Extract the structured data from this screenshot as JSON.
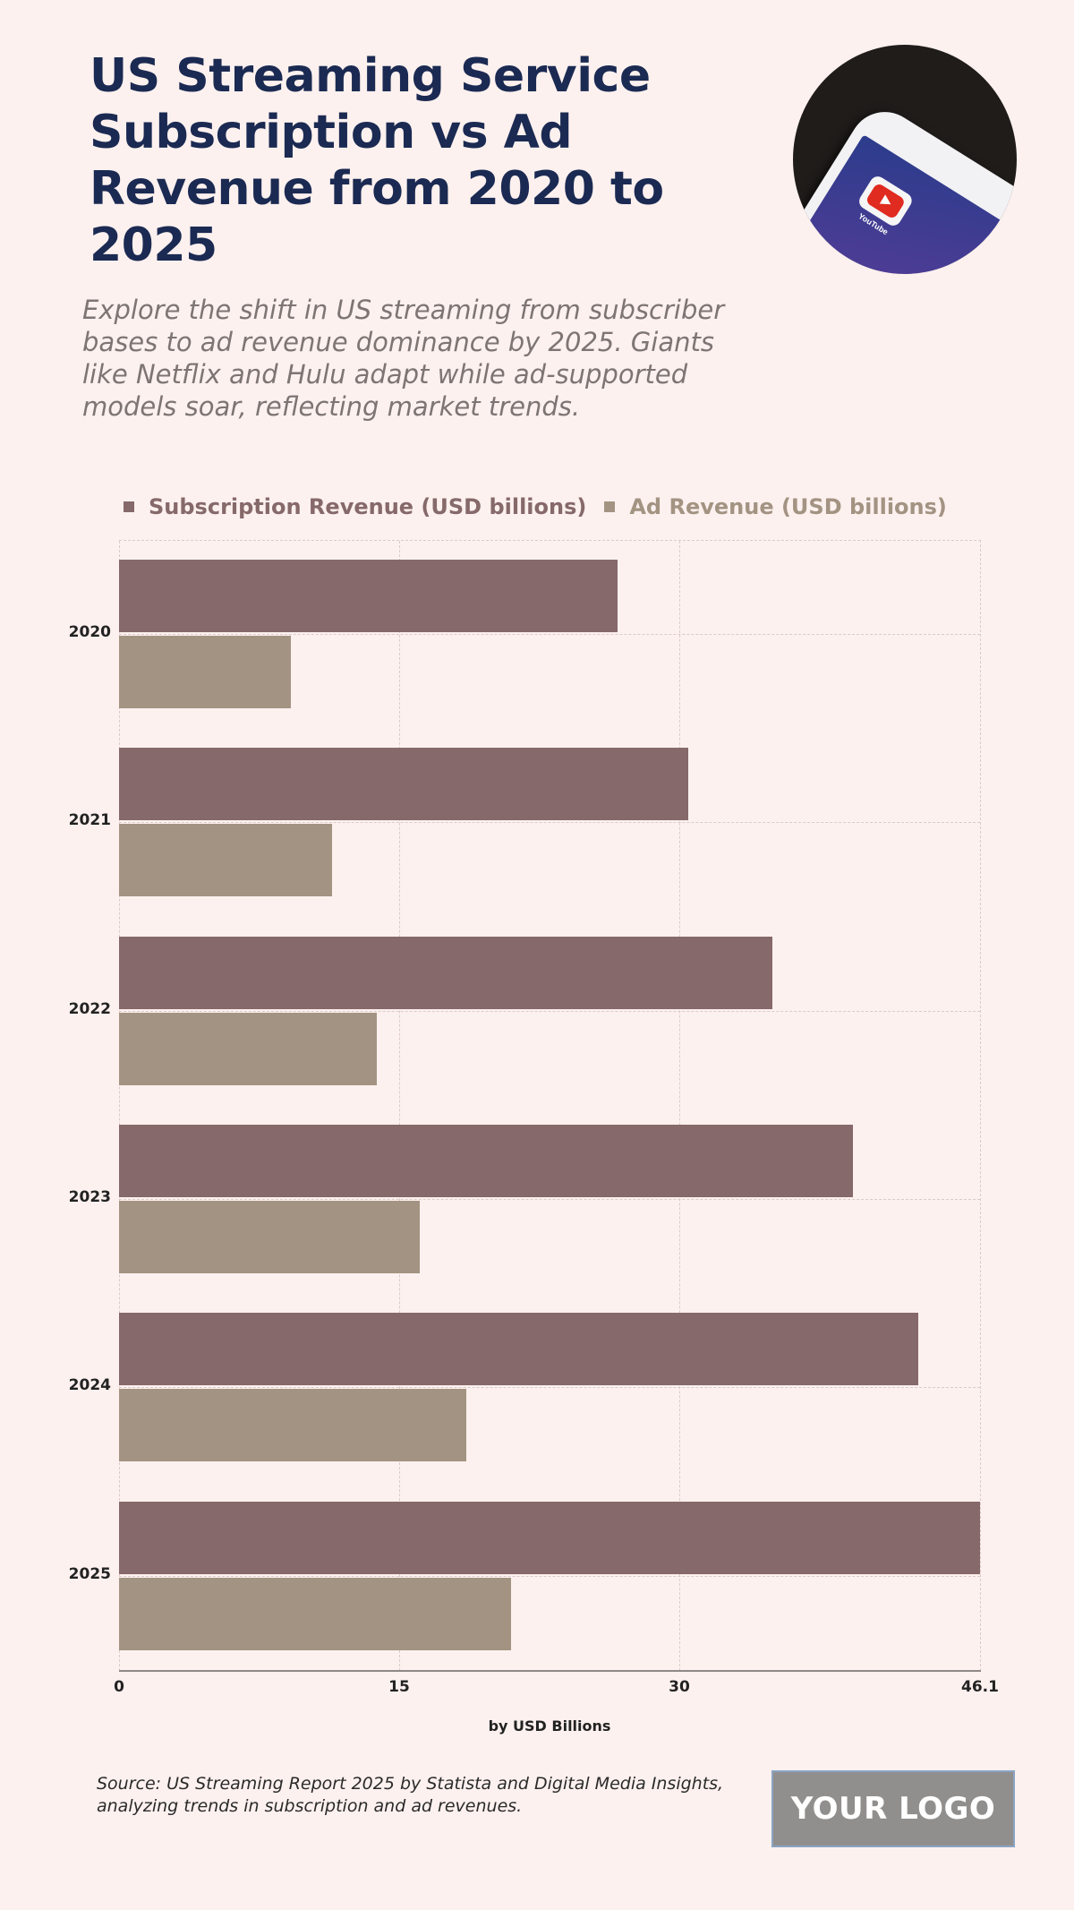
{
  "header": {
    "title": "US Streaming Service Subscription vs Ad Revenue from 2020 to 2025",
    "subtitle": "Explore the shift in US streaming from subscriber bases to ad revenue dominance by 2025. Giants like Netflix and Hulu adapt while ad-supported models soar, reflecting market trends.",
    "hero_image": {
      "app_label": "YouTube",
      "icon": "youtube-app-icon"
    }
  },
  "legend": {
    "items": [
      {
        "label": "Subscription Revenue (USD billions)",
        "color": "#86696a"
      },
      {
        "label": "Ad Revenue (USD billions)",
        "color": "#a39382"
      }
    ]
  },
  "axis": {
    "x_ticks": [
      "0",
      "15",
      "30",
      "46.1"
    ],
    "x_title": "by USD Billions"
  },
  "footer": {
    "source": "Source: US Streaming Report 2025 by Statista and Digital Media Insights, analyzing trends in subscription and ad revenues.",
    "logo_text": "YOUR LOGO"
  },
  "chart_data": {
    "type": "bar",
    "orientation": "horizontal",
    "title": "US Streaming Service Subscription vs Ad Revenue from 2020 to 2025",
    "categories": [
      "2020",
      "2021",
      "2022",
      "2023",
      "2024",
      "2025"
    ],
    "series": [
      {
        "name": "Subscription Revenue (USD billions)",
        "color": "#86696a",
        "values": [
          26.7,
          30.5,
          35.0,
          39.3,
          42.8,
          46.1
        ]
      },
      {
        "name": "Ad Revenue (USD billions)",
        "color": "#a39382",
        "values": [
          9.2,
          11.4,
          13.8,
          16.1,
          18.6,
          21.0
        ]
      }
    ],
    "xlabel": "by USD Billions",
    "ylabel": "",
    "xlim": [
      0,
      46.1
    ],
    "x_ticks": [
      0,
      15,
      30,
      46.1
    ],
    "grid": true,
    "legend_position": "top"
  }
}
